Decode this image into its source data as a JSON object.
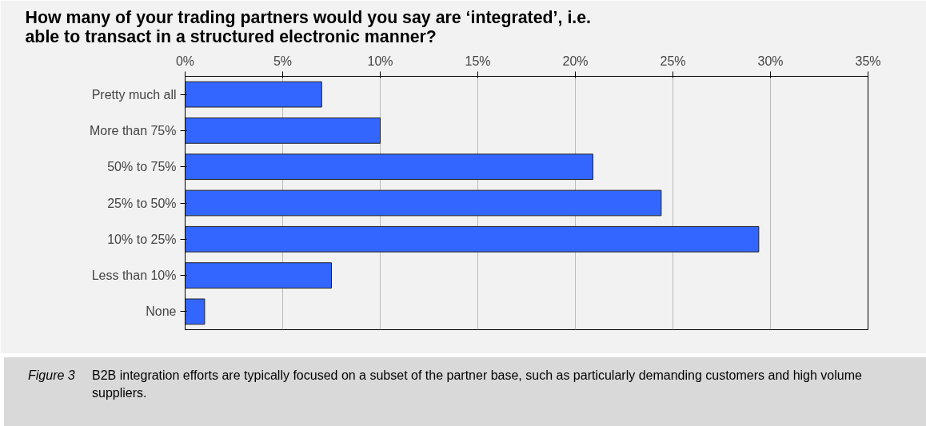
{
  "chart_data": {
    "type": "bar",
    "orientation": "horizontal",
    "title": "How many of your trading partners would you say are ‘integrated’, i.e. able to transact in a structured electronic manner?",
    "categories": [
      "Pretty much all",
      "More than 75%",
      "50% to 75%",
      "25% to 50%",
      "10% to 25%",
      "Less than 10%",
      "None"
    ],
    "values": [
      7.0,
      10.0,
      20.9,
      24.4,
      29.4,
      7.5,
      1.0
    ],
    "color": "#3366ff",
    "xlim": [
      0,
      35
    ],
    "xticks": [
      {
        "value": 0,
        "label": "0%"
      },
      {
        "value": 5,
        "label": "5%"
      },
      {
        "value": 10,
        "label": "10%"
      },
      {
        "value": 15,
        "label": "15%"
      },
      {
        "value": 20,
        "label": "20%"
      },
      {
        "value": 25,
        "label": "25%"
      },
      {
        "value": 30,
        "label": "30%"
      },
      {
        "value": 35,
        "label": "35%"
      }
    ],
    "grid": "x",
    "annotations": [
      "Figure 3",
      "B2B integration efforts are typically focused on a subset of the partner base, such as particularly demanding customers and high volume suppliers."
    ]
  }
}
